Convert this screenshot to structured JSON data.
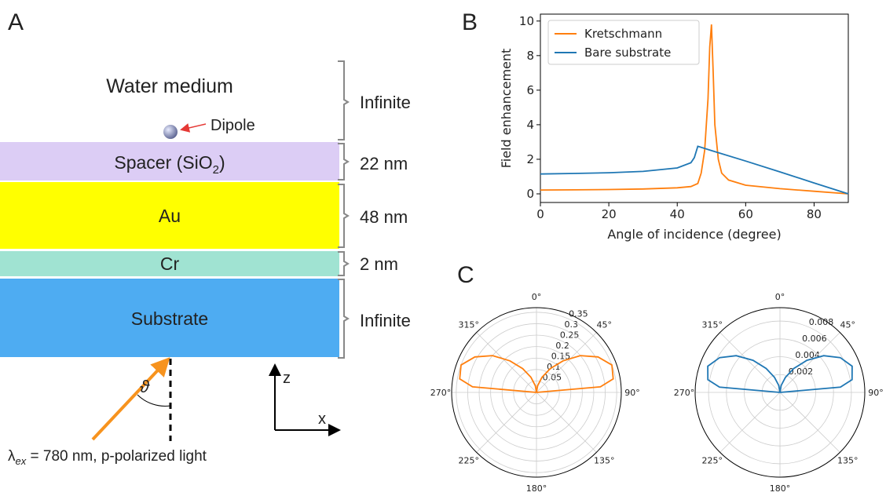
{
  "panels": {
    "a": "A",
    "b": "B",
    "c": "C"
  },
  "diagram": {
    "water": "Water medium",
    "dipole": "Dipole",
    "spacer": {
      "text": "Spacer (SiO",
      "sub": "2",
      "tail": ")"
    },
    "au": "Au",
    "cr": "Cr",
    "substrate": "Substrate",
    "thickness": [
      "Infinite",
      "22 nm",
      "48 nm",
      "2 nm",
      "Infinite"
    ],
    "angle": "ϑ",
    "axis_z": "z",
    "axis_x": "x",
    "light": {
      "symbol": "λ",
      "sub": "ex",
      "text": " = 780 nm, p-polarized light"
    }
  },
  "chart_data": [
    {
      "type": "line",
      "x_label": "Angle of incidence (degree)",
      "y_label": "Field enhancement",
      "xlim": [
        0,
        90
      ],
      "ylim": [
        -0.5,
        10.4
      ],
      "xticks": [
        0,
        20,
        40,
        60,
        80
      ],
      "yticks": [
        0,
        2,
        4,
        6,
        8,
        10
      ],
      "legend": "upper-left",
      "series": [
        {
          "name": "Kretschmann",
          "color": "#ff7f0e",
          "x": [
            0,
            10,
            20,
            30,
            40,
            44,
            46,
            47,
            48,
            49,
            49.5,
            50,
            50.5,
            51,
            52,
            53,
            55,
            60,
            70,
            80,
            90
          ],
          "values": [
            0.22,
            0.23,
            0.25,
            0.28,
            0.35,
            0.42,
            0.6,
            1.2,
            2.5,
            5.5,
            8.5,
            9.8,
            7,
            4,
            2,
            1.2,
            0.8,
            0.5,
            0.3,
            0.15,
            0
          ]
        },
        {
          "name": "Bare substrate",
          "color": "#1f77b4",
          "x": [
            0,
            10,
            20,
            30,
            40,
            44,
            45,
            46,
            50,
            60,
            70,
            80,
            90
          ],
          "values": [
            1.15,
            1.18,
            1.22,
            1.3,
            1.5,
            1.8,
            2.1,
            2.75,
            2.5,
            1.9,
            1.27,
            0.63,
            0
          ]
        }
      ]
    },
    {
      "type": "polar",
      "rlim": [
        0,
        0.37
      ],
      "rticks": [
        0.05,
        0.1,
        0.15,
        0.2,
        0.25,
        0.3,
        0.35
      ],
      "thetaticks": [
        {
          "value": 0,
          "label": "0°"
        },
        {
          "value": 45,
          "label": "45°"
        },
        {
          "value": 90,
          "label": "90°"
        },
        {
          "value": 135,
          "label": "135°"
        },
        {
          "value": 180,
          "label": "180°"
        },
        {
          "value": 225,
          "label": "225°"
        },
        {
          "value": 270,
          "label": "270°"
        },
        {
          "value": 315,
          "label": "315°"
        }
      ],
      "series": [
        {
          "color": "#ff7f0e",
          "theta": [
            270,
            275,
            280,
            290,
            300,
            310,
            320,
            330,
            340,
            350,
            0,
            10,
            20,
            30,
            40,
            50,
            60,
            70,
            80,
            85,
            90
          ],
          "values": [
            0,
            0.28,
            0.34,
            0.35,
            0.31,
            0.25,
            0.18,
            0.12,
            0.07,
            0.03,
            0,
            0.03,
            0.07,
            0.12,
            0.18,
            0.25,
            0.31,
            0.35,
            0.34,
            0.28,
            0
          ]
        }
      ]
    },
    {
      "type": "polar",
      "rlim": [
        0,
        0.0095
      ],
      "rticks": [
        0.002,
        0.004,
        0.006,
        0.008
      ],
      "thetaticks": [
        {
          "value": 0,
          "label": "0°"
        },
        {
          "value": 45,
          "label": "45°"
        },
        {
          "value": 90,
          "label": "90°"
        },
        {
          "value": 135,
          "label": "135°"
        },
        {
          "value": 180,
          "label": "180°"
        },
        {
          "value": 225,
          "label": "225°"
        },
        {
          "value": 270,
          "label": "270°"
        },
        {
          "value": 315,
          "label": "315°"
        }
      ],
      "series": [
        {
          "color": "#1f77b4",
          "theta": [
            270,
            275,
            280,
            290,
            300,
            310,
            320,
            330,
            340,
            350,
            0,
            10,
            20,
            30,
            40,
            50,
            60,
            70,
            80,
            85,
            90
          ],
          "values": [
            0,
            0.0068,
            0.0082,
            0.0086,
            0.0078,
            0.0064,
            0.0047,
            0.0031,
            0.0018,
            0.0008,
            0,
            0.0008,
            0.0018,
            0.0031,
            0.0047,
            0.0064,
            0.0078,
            0.0086,
            0.0082,
            0.0068,
            0
          ]
        }
      ]
    }
  ]
}
